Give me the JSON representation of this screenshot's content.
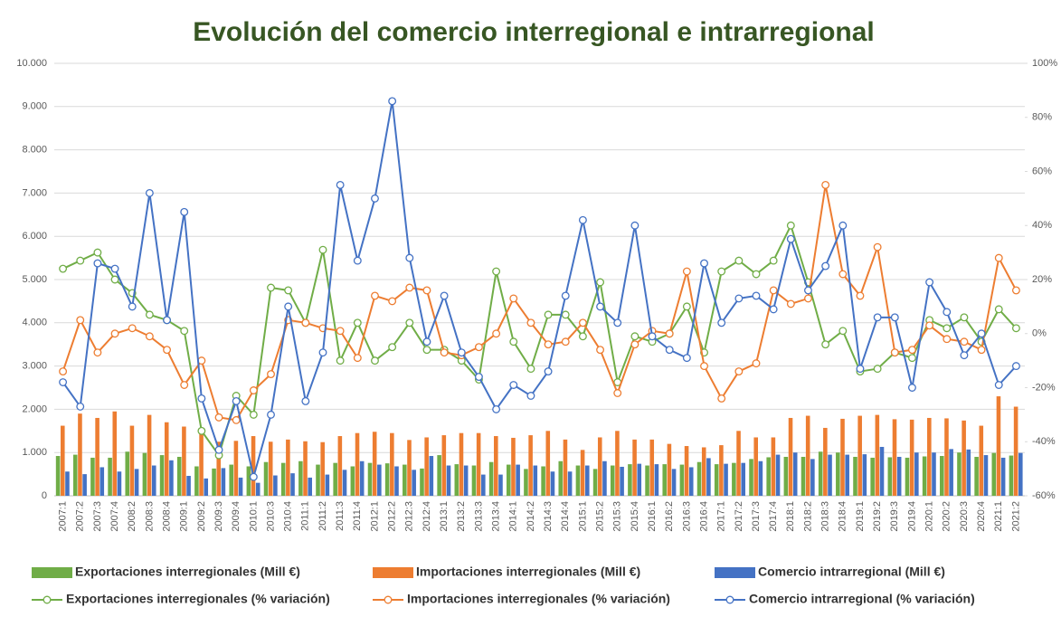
{
  "chart_data": {
    "type": "bar-line",
    "title": "Evolución del comercio interregional e intrarregional",
    "categories": [
      "2007:1",
      "2007:2",
      "2007:3",
      "2007:4",
      "2008:2",
      "2008:3",
      "2008:4",
      "2009:1",
      "2009:2",
      "2009:3",
      "2009:4",
      "2010:1",
      "2010:3",
      "2010:4",
      "2011:1",
      "2011:2",
      "2011:3",
      "2011:4",
      "2012:1",
      "2012:2",
      "2012:3",
      "2012:4",
      "2013:1",
      "2013:2",
      "2013:3",
      "2013:4",
      "2014:1",
      "2014:2",
      "2014:3",
      "2014:4",
      "2015:1",
      "2015:2",
      "2015:3",
      "2015:4",
      "2016:1",
      "2016:2",
      "2016:3",
      "2016:4",
      "2017:1",
      "2017:2",
      "2017:3",
      "2017:4",
      "2018:1",
      "2018:2",
      "2018:3",
      "2018:4",
      "2019:1",
      "2019:2",
      "2019:3",
      "2019:4",
      "2020:1",
      "2020:2",
      "2020:3",
      "2020:4",
      "2021:1",
      "2021:2"
    ],
    "series": [
      {
        "name": "Exportaciones interregionales (Mill €)",
        "type": "bar",
        "axis": "y",
        "color": "#70ad47",
        "values": [
          920,
          950,
          880,
          880,
          1020,
          990,
          940,
          900,
          680,
          630,
          720,
          680,
          780,
          760,
          800,
          720,
          760,
          680,
          760,
          750,
          720,
          630,
          940,
          730,
          700,
          780,
          720,
          620,
          680,
          800,
          700,
          620,
          700,
          730,
          700,
          730,
          720,
          780,
          730,
          760,
          850,
          890,
          900,
          900,
          1020,
          1000,
          900,
          880,
          890,
          880,
          910,
          920,
          1000,
          900,
          990,
          930
        ]
      },
      {
        "name": "Importaciones interregionales (Mill €)",
        "type": "bar",
        "axis": "y",
        "color": "#ed7d31",
        "values": [
          1620,
          1900,
          1800,
          1950,
          1620,
          1870,
          1700,
          1600,
          1500,
          1250,
          1270,
          1380,
          1250,
          1300,
          1260,
          1240,
          1380,
          1450,
          1480,
          1450,
          1290,
          1350,
          1400,
          1450,
          1450,
          1380,
          1340,
          1400,
          1500,
          1300,
          1060,
          1350,
          1500,
          1300,
          1300,
          1200,
          1150,
          1120,
          1170,
          1500,
          1350,
          1350,
          1800,
          1850,
          1570,
          1780,
          1850,
          1870,
          1770,
          1760,
          1800,
          1790,
          1740,
          1620,
          2300,
          2060
        ]
      },
      {
        "name": "Comercio intrarregional (Mill €)",
        "type": "bar",
        "axis": "y",
        "color": "#4472c4",
        "values": [
          560,
          500,
          660,
          560,
          620,
          700,
          820,
          460,
          400,
          640,
          420,
          300,
          470,
          520,
          420,
          490,
          600,
          800,
          720,
          680,
          600,
          920,
          700,
          700,
          490,
          490,
          720,
          700,
          560,
          560,
          700,
          800,
          670,
          740,
          730,
          620,
          660,
          870,
          740,
          760,
          800,
          950,
          1000,
          850,
          950,
          950,
          960,
          1130,
          900,
          1000,
          1000,
          1080,
          1070,
          940,
          880,
          990
        ]
      },
      {
        "name": "Exportaciones interregionales (% variación)",
        "type": "line",
        "axis": "y2",
        "color": "#70ad47",
        "values": [
          24,
          27,
          30,
          20,
          15,
          7,
          5,
          1,
          -36,
          -45,
          -23,
          -30,
          17,
          16,
          4,
          31,
          -10,
          4,
          -10,
          -5,
          4,
          -6,
          -6,
          -10,
          -17,
          23,
          -3,
          -13,
          7,
          7,
          -1,
          19,
          -18,
          -1,
          -3,
          0,
          10,
          -7,
          23,
          27,
          22,
          27,
          40,
          19,
          -4,
          1,
          -14,
          -13,
          -7,
          -9,
          5,
          2,
          6,
          -3,
          9,
          2
        ]
      },
      {
        "name": "Importaciones interregionales (% variación)",
        "type": "line",
        "axis": "y2",
        "color": "#ed7d31",
        "values": [
          -14,
          5,
          -7,
          0,
          2,
          -1,
          -6,
          -19,
          -10,
          -31,
          -32,
          -21,
          -15,
          5,
          4,
          2,
          1,
          -9,
          14,
          12,
          17,
          16,
          -7,
          -8,
          -5,
          0,
          13,
          4,
          -4,
          -3,
          4,
          -6,
          -22,
          -4,
          1,
          0,
          23,
          -12,
          -24,
          -14,
          -11,
          16,
          11,
          13,
          55,
          22,
          14,
          32,
          -7,
          -6,
          3,
          -2,
          -3,
          -6,
          28,
          16
        ]
      },
      {
        "name": "Comercio intrarregional (% variación)",
        "type": "line",
        "axis": "y2",
        "color": "#4472c4",
        "values": [
          -18,
          -27,
          26,
          24,
          10,
          52,
          5,
          45,
          -24,
          -43,
          -25,
          -53,
          -30,
          10,
          -25,
          -7,
          55,
          27,
          50,
          86,
          28,
          -3,
          14,
          -7,
          -16,
          -28,
          -19,
          -23,
          -14,
          14,
          42,
          10,
          4,
          40,
          -1,
          -6,
          -9,
          26,
          4,
          13,
          14,
          9,
          35,
          16,
          25,
          40,
          -13,
          6,
          6,
          -20,
          19,
          8,
          -8,
          0,
          -19,
          -12
        ]
      }
    ],
    "ylim": [
      0,
      10000
    ],
    "yticks": [
      0,
      {
        "value": 1000,
        "label": "1.000"
      },
      {
        "value": 2000,
        "label": "2.000"
      },
      {
        "value": 3000,
        "label": "3.000"
      },
      {
        "value": 4000,
        "label": "4.000"
      },
      {
        "value": 5000,
        "label": "5.000"
      },
      {
        "value": 6000,
        "label": "6.000"
      },
      {
        "value": 7000,
        "label": "7.000"
      },
      {
        "value": 8000,
        "label": "8.000"
      },
      {
        "value": 9000,
        "label": "9.000"
      },
      {
        "value": 10000,
        "label": "10.000"
      }
    ],
    "y2lim": [
      -60,
      100
    ],
    "y2ticks": [
      {
        "value": -60,
        "label": "-60%"
      },
      {
        "value": -40,
        "label": "-40%"
      },
      {
        "value": -20,
        "label": "-20%"
      },
      {
        "value": 0,
        "label": "0%"
      },
      {
        "value": 20,
        "label": "20%"
      },
      {
        "value": 40,
        "label": "40%"
      },
      {
        "value": 60,
        "label": "60%"
      },
      {
        "value": 80,
        "label": "80%"
      },
      {
        "value": 100,
        "label": "100%"
      }
    ],
    "grid": true,
    "legend": "bottom"
  }
}
